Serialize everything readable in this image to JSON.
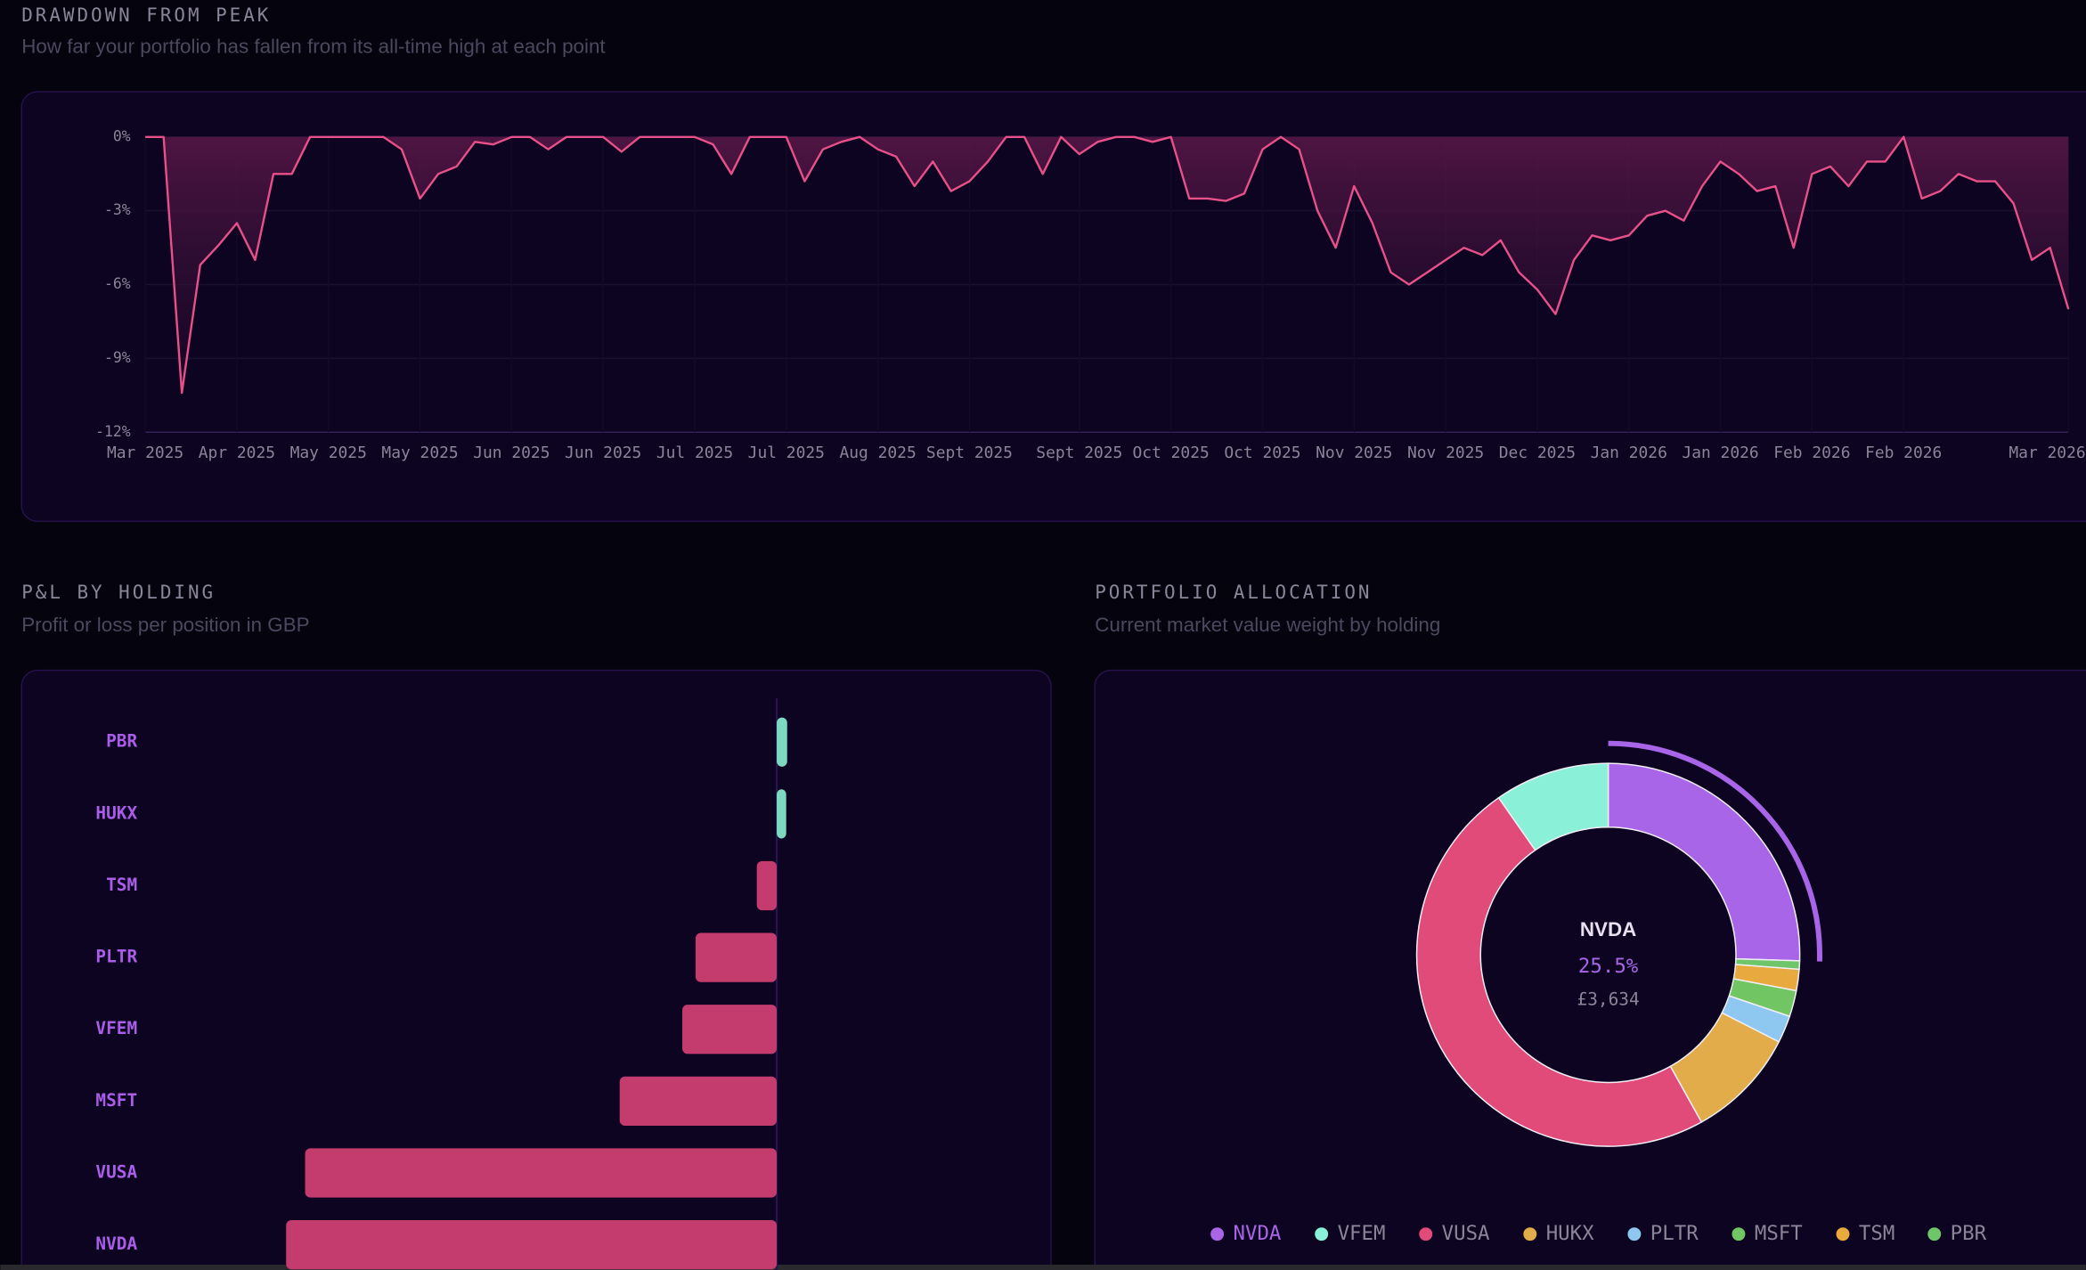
{
  "chart_data": [
    {
      "type": "area",
      "title": "DRAWDOWN FROM PEAK",
      "subtitle": "How far your portfolio has fallen from its all-time high at each point",
      "color": "#e8508a",
      "categories": [
        "Mar 2025",
        null,
        null,
        null,
        null,
        "Apr 2025",
        null,
        null,
        null,
        null,
        "May 2025",
        null,
        null,
        null,
        null,
        "May 2025",
        null,
        null,
        null,
        null,
        "Jun 2025",
        null,
        null,
        null,
        null,
        "Jun 2025",
        null,
        null,
        null,
        null,
        "Jul 2025",
        null,
        null,
        null,
        null,
        "Jul 2025",
        null,
        null,
        null,
        null,
        "Aug 2025",
        null,
        null,
        null,
        null,
        "Sept 2025",
        null,
        null,
        null,
        null,
        null,
        "Sept 2025",
        null,
        null,
        null,
        null,
        "Oct 2025",
        null,
        null,
        null,
        null,
        "Oct 2025",
        null,
        null,
        null,
        null,
        "Nov 2025",
        null,
        null,
        null,
        null,
        "Nov 2025",
        null,
        null,
        null,
        null,
        "Dec 2025",
        null,
        null,
        null,
        null,
        "Jan 2026",
        null,
        null,
        null,
        null,
        "Jan 2026",
        null,
        null,
        null,
        null,
        "Feb 2026",
        null,
        null,
        null,
        null,
        "Feb 2026",
        null,
        null,
        null,
        null,
        null,
        null,
        null,
        null,
        "Mar 2026"
      ],
      "values": [
        0,
        0,
        -10.4,
        -5.2,
        -4.4,
        -3.5,
        -5,
        -1.5,
        -1.5,
        0,
        0,
        0,
        0,
        0,
        -0.5,
        -2.5,
        -1.5,
        -1.2,
        -0.2,
        -0.3,
        0,
        0,
        -0.5,
        0,
        0,
        0,
        -0.6,
        0,
        0,
        0,
        0,
        -0.3,
        -1.5,
        0,
        0,
        0,
        -1.8,
        -0.5,
        -0.2,
        0,
        -0.5,
        -0.8,
        -2,
        -1,
        -2.2,
        -1.8,
        -1,
        0,
        0,
        -1.5,
        0,
        -0.7,
        -0.2,
        0,
        0,
        -0.2,
        0,
        -2.5,
        -2.5,
        -2.6,
        -2.3,
        -0.5,
        0,
        -0.5,
        -3,
        -4.5,
        -2,
        -3.5,
        -5.5,
        -6,
        -5.5,
        -5,
        -4.5,
        -4.8,
        -4.2,
        -5.5,
        -6.2,
        -7.2,
        -5,
        -4,
        -4.2,
        -4,
        -3.2,
        -3,
        -3.4,
        -2,
        -1,
        -1.5,
        -2.2,
        -2,
        -4.5,
        -1.5,
        -1.2,
        -2,
        -1,
        -1,
        0,
        -2.5,
        -2.2,
        -1.5,
        -1.8,
        -1.8,
        -2.7,
        -5,
        -4.5,
        -7
      ],
      "ylim": [
        -12,
        0
      ],
      "yticks": [
        {
          "value": 0,
          "label": "0%"
        },
        {
          "value": -3,
          "label": "-3%"
        },
        {
          "value": -6,
          "label": "-6%"
        },
        {
          "value": -9,
          "label": "-9%"
        },
        {
          "value": -12,
          "label": "-12%"
        }
      ],
      "grid": true
    },
    {
      "type": "bar",
      "orientation": "horizontal",
      "title": "P&L BY HOLDING",
      "subtitle": "Profit or loss per position in GBP",
      "categories": [
        "PBR",
        "HUKX",
        "TSM",
        "PLTR",
        "VFEM",
        "MSFT",
        "VUSA",
        "NVDA"
      ],
      "values": [
        22,
        20,
        -42,
        -171,
        -199,
        -331,
        -994,
        -1034
      ],
      "positive_color": "#7dd8c0",
      "negative_color": "#c43b6e",
      "label_color": "#a95de8",
      "xlim": [
        -1300,
        550
      ]
    },
    {
      "type": "doughnut",
      "title": "PORTFOLIO ALLOCATION",
      "subtitle": "Current market value weight by holding",
      "categories": [
        "NVDA",
        "VFEM",
        "VUSA",
        "HUKX",
        "PLTR",
        "MSFT",
        "TSM",
        "PBR"
      ],
      "values": [
        25.5,
        9.7,
        48.4,
        9.4,
        2.3,
        2.2,
        1.8,
        0.7
      ],
      "colors": [
        "#a965e8",
        "#8af0d8",
        "#e04b7a",
        "#e3ac4a",
        "#8ec8f0",
        "#72c563",
        "#e8a93e",
        "#6fc56a"
      ],
      "center_value": {
        "value": 25.5,
        "label": "25.5%"
      },
      "center_amount": {
        "value": 3634,
        "label": "£3,634"
      }
    }
  ]
}
